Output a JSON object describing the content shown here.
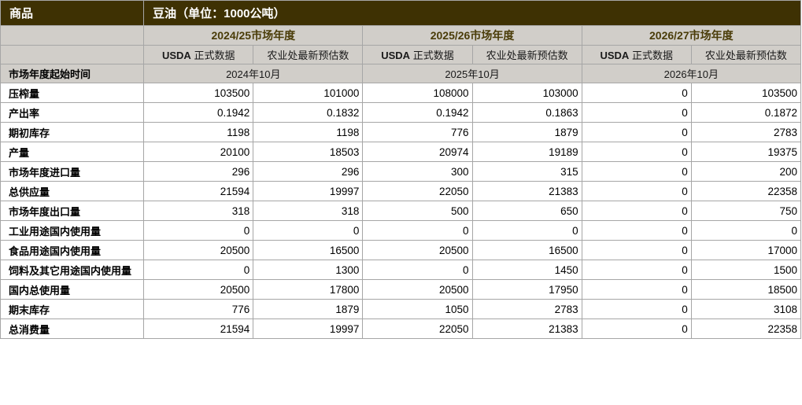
{
  "colors": {
    "title_background": "#3e3103",
    "title_text": "#ffffff",
    "header_background": "#d1cec9",
    "year_text": "#4a3c08",
    "border": "#a6a6a6",
    "data_text": "#000000"
  },
  "title": {
    "commodity_label": "商品",
    "commodity_value": "豆油（单位：1000公吨）"
  },
  "header": {
    "years": [
      {
        "label": "2024/25市场年度",
        "start_date": "2024年10月"
      },
      {
        "label": "2025/26市场年度",
        "start_date": "2025年10月"
      },
      {
        "label": "2026/27市场年度",
        "start_date": "2026年10月"
      }
    ],
    "sub_columns": {
      "usda_en": "USDA",
      "usda_zh": " 正式数据",
      "estimate": "农业处最新预估数"
    },
    "start_row_label": "市场年度起始时间"
  },
  "rows": [
    {
      "label": "压榨量",
      "values": [
        "103500",
        "101000",
        "108000",
        "103000",
        "0",
        "103500"
      ]
    },
    {
      "label": "产出率",
      "values": [
        "0.1942",
        "0.1832",
        "0.1942",
        "0.1863",
        "0",
        "0.1872"
      ]
    },
    {
      "label": "期初库存",
      "values": [
        "1198",
        "1198",
        "776",
        "1879",
        "0",
        "2783"
      ]
    },
    {
      "label": "产量",
      "values": [
        "20100",
        "18503",
        "20974",
        "19189",
        "0",
        "19375"
      ]
    },
    {
      "label": "市场年度进口量",
      "values": [
        "296",
        "296",
        "300",
        "315",
        "0",
        "200"
      ]
    },
    {
      "label": "总供应量",
      "values": [
        "21594",
        "19997",
        "22050",
        "21383",
        "0",
        "22358"
      ]
    },
    {
      "label": "市场年度出口量",
      "values": [
        "318",
        "318",
        "500",
        "650",
        "0",
        "750"
      ]
    },
    {
      "label": "工业用途国内使用量",
      "values": [
        "0",
        "0",
        "0",
        "0",
        "0",
        "0"
      ]
    },
    {
      "label": "食品用途国内使用量",
      "values": [
        "20500",
        "16500",
        "20500",
        "16500",
        "0",
        "17000"
      ]
    },
    {
      "label": "饲料及其它用途国内使用量",
      "values": [
        "0",
        "1300",
        "0",
        "1450",
        "0",
        "1500"
      ]
    },
    {
      "label": "国内总使用量",
      "values": [
        "20500",
        "17800",
        "20500",
        "17950",
        "0",
        "18500"
      ]
    },
    {
      "label": "期末库存",
      "values": [
        "776",
        "1879",
        "1050",
        "2783",
        "0",
        "3108"
      ]
    },
    {
      "label": "总消费量",
      "values": [
        "21594",
        "19997",
        "22050",
        "21383",
        "0",
        "22358"
      ]
    }
  ]
}
